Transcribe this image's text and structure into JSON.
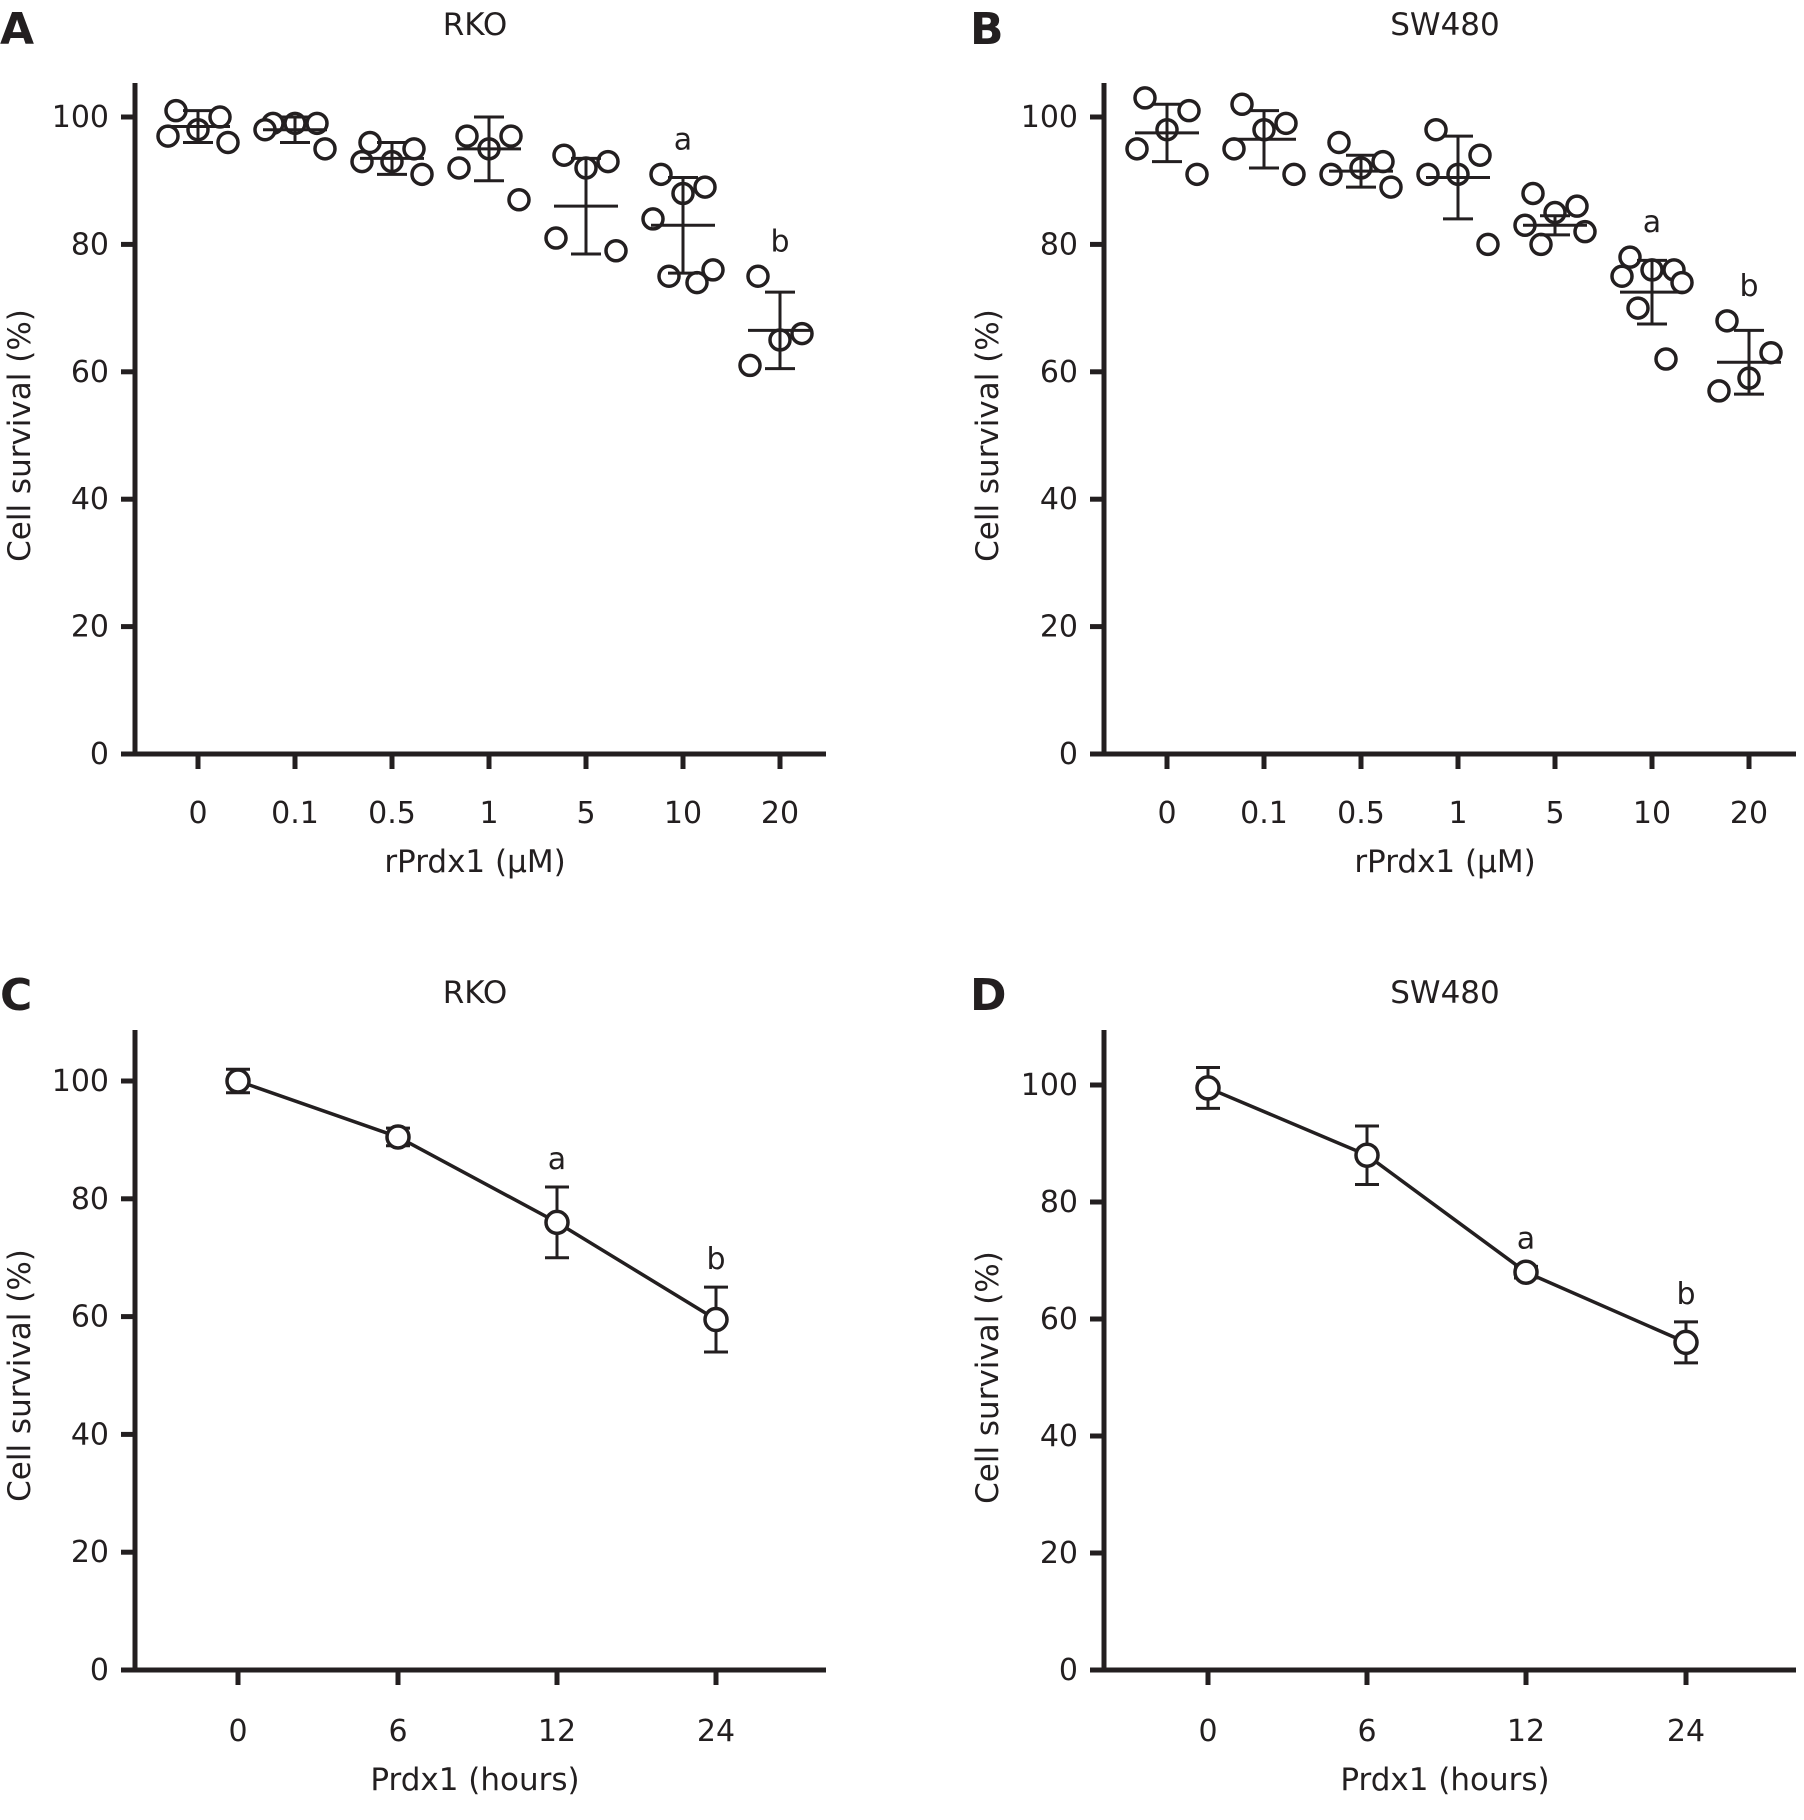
{
  "chart_data": [
    {
      "panel": "A",
      "type": "scatter",
      "title": "RKO",
      "xlabel": "rPrdx1 (μM)",
      "ylabel": "Cell survival (%)",
      "ylim": [
        0,
        105
      ],
      "yticks": [
        "0",
        "20",
        "40",
        "60",
        "80",
        "100"
      ],
      "categories": [
        "0",
        "0.1",
        "0.5",
        "1",
        "5",
        "10",
        "20"
      ],
      "points": [
        [
          101,
          100,
          98,
          97,
          96
        ],
        [
          99,
          99,
          99,
          98,
          95
        ],
        [
          96,
          95,
          93,
          93,
          91
        ],
        [
          97,
          97,
          95,
          92,
          87
        ],
        [
          94,
          93,
          92,
          81,
          79
        ],
        [
          91,
          89,
          88,
          84,
          76,
          75,
          74
        ],
        [
          75,
          66,
          65,
          61
        ]
      ],
      "mean": [
        98.5,
        98,
        93.5,
        95,
        86,
        83,
        66.5
      ],
      "sd": [
        2.5,
        2,
        2.5,
        5,
        7.5,
        7.5,
        6
      ],
      "sig": [
        "",
        "",
        "",
        "",
        "",
        "a",
        "b"
      ]
    },
    {
      "panel": "B",
      "type": "scatter",
      "title": "SW480",
      "xlabel": "rPrdx1 (μM)",
      "ylabel": "Cell survival (%)",
      "ylim": [
        0,
        105
      ],
      "yticks": [
        "0",
        "20",
        "40",
        "60",
        "80",
        "100"
      ],
      "categories": [
        "0",
        "0.1",
        "0.5",
        "1",
        "5",
        "10",
        "20"
      ],
      "points": [
        [
          103,
          101,
          98,
          95,
          91
        ],
        [
          102,
          99,
          98,
          95,
          91
        ],
        [
          96,
          93,
          92,
          91,
          89
        ],
        [
          98,
          94,
          91,
          91,
          80
        ],
        [
          88,
          86,
          85,
          83,
          82,
          80
        ],
        [
          78,
          76,
          76,
          75,
          74,
          70,
          62
        ],
        [
          68,
          63,
          59,
          57
        ]
      ],
      "mean": [
        97.5,
        96.5,
        91.5,
        90.5,
        83,
        72.5,
        61.5
      ],
      "sd": [
        4.5,
        4.5,
        2.5,
        6.5,
        1.5,
        5,
        5
      ],
      "sig": [
        "",
        "",
        "",
        "",
        "",
        "a",
        "b"
      ]
    },
    {
      "panel": "C",
      "type": "line",
      "title": "RKO",
      "xlabel": "Prdx1 (hours)",
      "ylabel": "Cell survival (%)",
      "ylim": [
        0,
        105
      ],
      "yticks": [
        "0",
        "20",
        "40",
        "60",
        "80",
        "100"
      ],
      "categories": [
        "0",
        "6",
        "12",
        "24"
      ],
      "values": [
        100,
        90.5,
        76,
        59.5
      ],
      "sd": [
        2,
        1.5,
        6,
        5.5
      ],
      "sig": [
        "",
        "",
        "a",
        "b"
      ]
    },
    {
      "panel": "D",
      "type": "line",
      "title": "SW480",
      "xlabel": "Prdx1 (hours)",
      "ylabel": "Cell survival (%)",
      "ylim": [
        0,
        105
      ],
      "yticks": [
        "0",
        "20",
        "40",
        "60",
        "80",
        "100"
      ],
      "categories": [
        "0",
        "6",
        "12",
        "24"
      ],
      "values": [
        99.5,
        88,
        68,
        56
      ],
      "sd": [
        3.5,
        5,
        1,
        3.5
      ],
      "sig": [
        "",
        "",
        "a",
        "b"
      ]
    }
  ]
}
